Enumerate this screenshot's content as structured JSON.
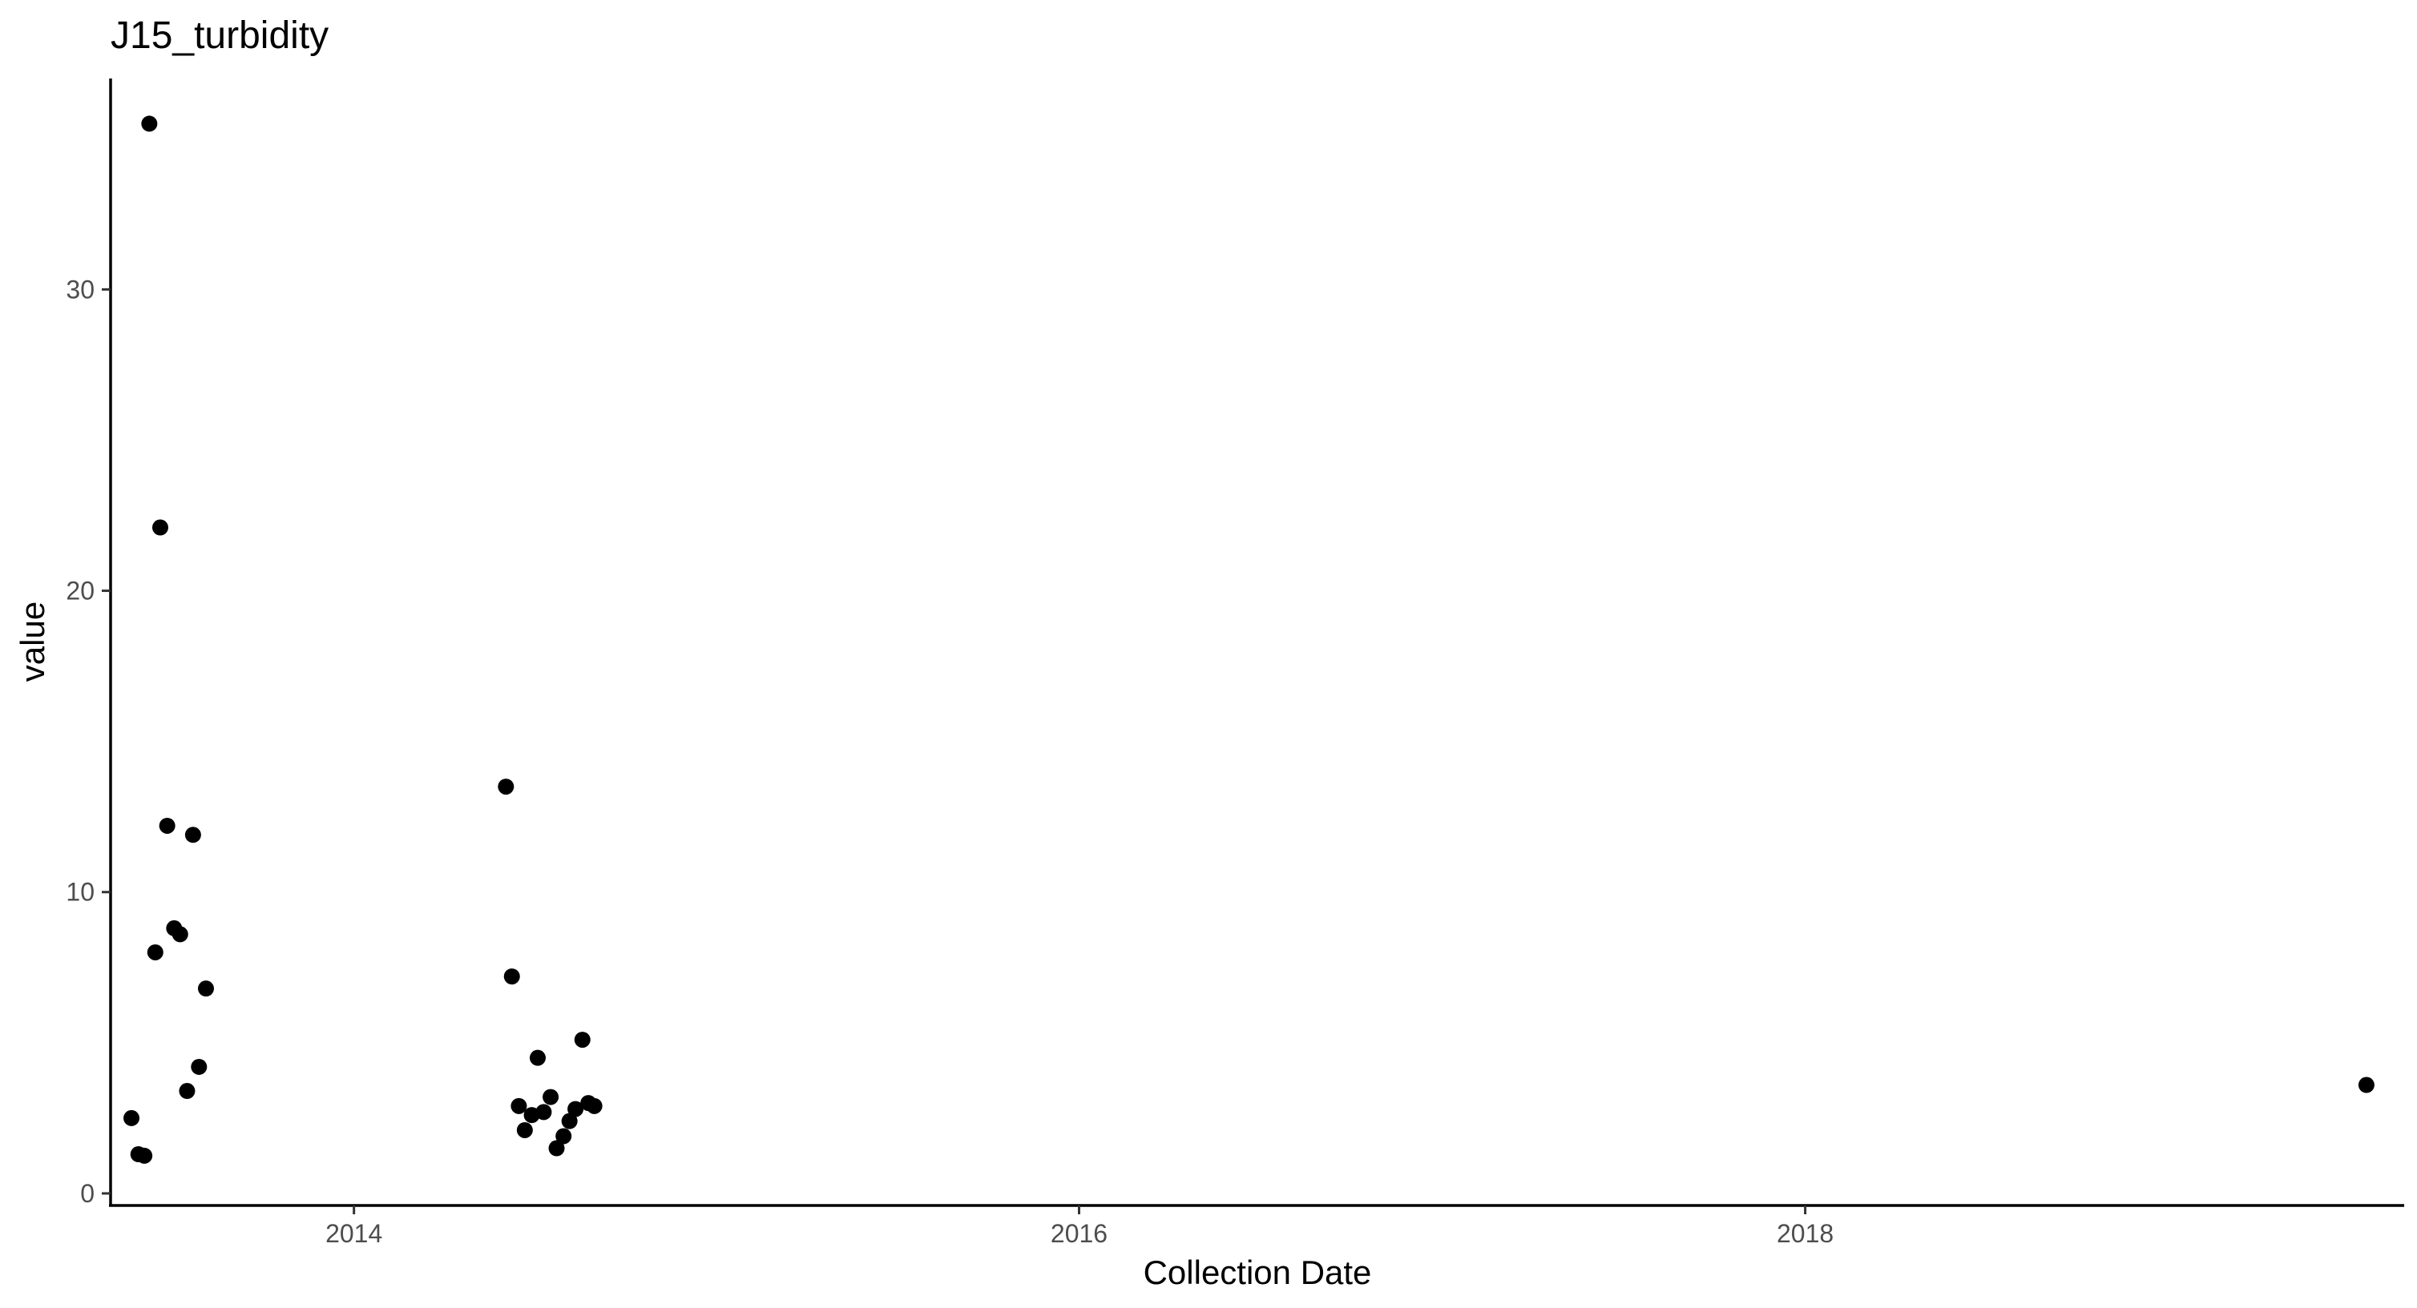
{
  "chart_data": {
    "type": "scatter",
    "title": "J15_turbidity",
    "xlabel": "Collection Date",
    "ylabel": "value",
    "x_scale": "date",
    "xlim": [
      "2013-05-01",
      "2019-08-27"
    ],
    "ylim": [
      -0.4,
      37
    ],
    "x_ticks": [
      {
        "value": "2014-01-01",
        "label": "2014"
      },
      {
        "value": "2016-01-01",
        "label": "2016"
      },
      {
        "value": "2018-01-01",
        "label": "2018"
      }
    ],
    "y_ticks": [
      {
        "value": 0,
        "label": "0"
      },
      {
        "value": 10,
        "label": "10"
      },
      {
        "value": 20,
        "label": "20"
      },
      {
        "value": 30,
        "label": "30"
      }
    ],
    "grid": false,
    "legend": "none",
    "point_color": "#000000",
    "series": [
      {
        "points": [
          {
            "x": "2013-05-22",
            "y": 2.5
          },
          {
            "x": "2013-05-29",
            "y": 1.3
          },
          {
            "x": "2013-06-04",
            "y": 1.25
          },
          {
            "x": "2013-06-09",
            "y": 35.5
          },
          {
            "x": "2013-06-15",
            "y": 8.0
          },
          {
            "x": "2013-06-20",
            "y": 22.1
          },
          {
            "x": "2013-06-27",
            "y": 12.2
          },
          {
            "x": "2013-07-04",
            "y": 8.8
          },
          {
            "x": "2013-07-10",
            "y": 8.6
          },
          {
            "x": "2013-07-17",
            "y": 3.4
          },
          {
            "x": "2013-07-23",
            "y": 11.9
          },
          {
            "x": "2013-07-29",
            "y": 4.2
          },
          {
            "x": "2013-08-05",
            "y": 6.8
          },
          {
            "x": "2014-06-03",
            "y": 13.5
          },
          {
            "x": "2014-06-09",
            "y": 7.2
          },
          {
            "x": "2014-06-16",
            "y": 2.9
          },
          {
            "x": "2014-06-22",
            "y": 2.1
          },
          {
            "x": "2014-06-29",
            "y": 2.6
          },
          {
            "x": "2014-07-05",
            "y": 4.5
          },
          {
            "x": "2014-07-11",
            "y": 2.7
          },
          {
            "x": "2014-07-18",
            "y": 3.2
          },
          {
            "x": "2014-07-24",
            "y": 1.5
          },
          {
            "x": "2014-07-31",
            "y": 1.9
          },
          {
            "x": "2014-08-06",
            "y": 2.4
          },
          {
            "x": "2014-08-12",
            "y": 2.8
          },
          {
            "x": "2014-08-19",
            "y": 5.1
          },
          {
            "x": "2014-08-25",
            "y": 3.0
          },
          {
            "x": "2014-08-31",
            "y": 2.9
          },
          {
            "x": "2019-07-20",
            "y": 3.6
          }
        ]
      }
    ]
  }
}
